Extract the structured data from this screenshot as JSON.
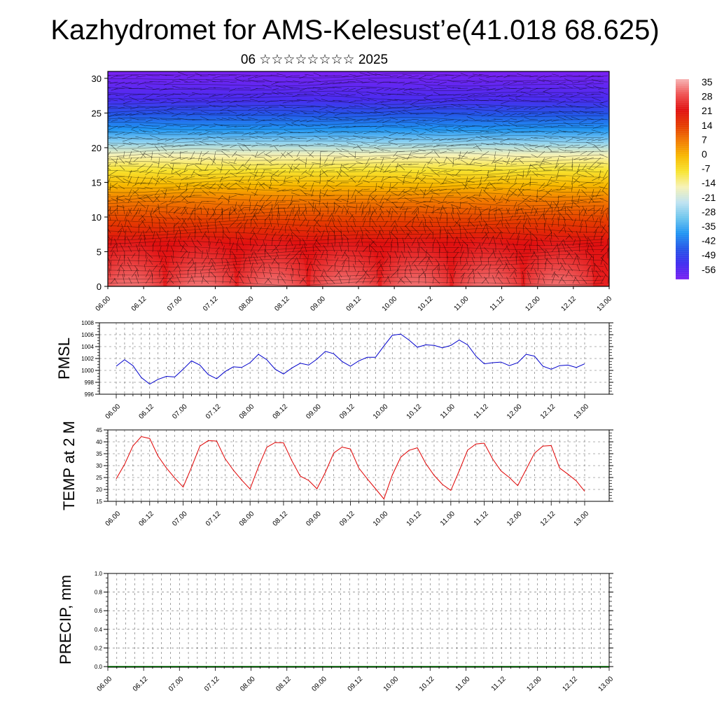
{
  "header": {
    "title": "Kazhydromet for AMS-Kelesust’e(41.018 68.625)",
    "subtitle": "06 ☆☆☆☆☆☆☆☆ 2025"
  },
  "chart_data": [
    {
      "type": "heatmap",
      "name": "temperature-wind-cross-section",
      "title": "",
      "y_ticks": [
        "0",
        "5",
        "10",
        "15",
        "20",
        "25",
        "30"
      ],
      "ylim": [
        0,
        31
      ],
      "x_ticks": [
        "06.00",
        "06.12",
        "07.00",
        "07.12",
        "08.00",
        "08.12",
        "09.00",
        "09.12",
        "10.00",
        "10.12",
        "11.00",
        "11.12",
        "12.00",
        "12.12",
        "13.00"
      ],
      "overlay": "wind barbs / streamlines",
      "colorbar": {
        "labels": [
          "35",
          "28",
          "21",
          "14",
          "7",
          "0",
          "-7",
          "-14",
          "-21",
          "-28",
          "-35",
          "-42",
          "-49",
          "-56"
        ],
        "colors": [
          "#f7b4b4",
          "#ef5050",
          "#e11010",
          "#e53a00",
          "#f27a00",
          "#f8b800",
          "#f8e430",
          "#f7f2b6",
          "#bfe3f1",
          "#6ec6ee",
          "#2196f3",
          "#2456e8",
          "#3f2af0",
          "#7a22f2"
        ]
      }
    },
    {
      "type": "line",
      "name": "pmsl",
      "ylabel": "PMSL",
      "ylim": [
        996,
        1008
      ],
      "y_ticks": [
        "996",
        "998",
        "1000",
        "1002",
        "1004",
        "1006",
        "1008"
      ],
      "x_ticks": [
        "06.00",
        "06.12",
        "07.00",
        "07.12",
        "08.00",
        "08.12",
        "09.00",
        "09.12",
        "10.00",
        "10.12",
        "11.00",
        "11.12",
        "12.00",
        "12.12",
        "13.00"
      ],
      "line_color": "#0000cc",
      "values": [
        1000.7,
        1001.8,
        1000.8,
        998.8,
        997.7,
        998.5,
        999.0,
        998.9,
        1000.2,
        1001.6,
        1000.9,
        999.3,
        998.6,
        999.8,
        1000.6,
        1000.5,
        1001.3,
        1002.7,
        1001.8,
        1000.2,
        999.4,
        1000.4,
        1001.2,
        1000.9,
        1001.9,
        1003.2,
        1002.8,
        1001.5,
        1000.7,
        1001.6,
        1002.2,
        1002.2,
        1004.1,
        1005.9,
        1006.1,
        1005.1,
        1003.9,
        1004.3,
        1004.2,
        1003.8,
        1004.2,
        1005.1,
        1004.3,
        1002.4,
        1001.1,
        1001.3,
        1001.4,
        1000.8,
        1001.3,
        1002.7,
        1002.4,
        1000.7,
        1000.2,
        1000.8,
        1000.9,
        1000.5,
        1001.1
      ]
    },
    {
      "type": "line",
      "name": "temp-2m",
      "ylabel": "TEMP at 2 M",
      "ylim": [
        15,
        45
      ],
      "y_ticks": [
        "15",
        "20",
        "25",
        "30",
        "35",
        "40",
        "45"
      ],
      "x_ticks": [
        "06.00",
        "06.12",
        "07.00",
        "07.12",
        "08.00",
        "08.12",
        "09.00",
        "09.12",
        "10.00",
        "10.12",
        "11.00",
        "11.12",
        "12.00",
        "12.12",
        "13.00"
      ],
      "line_color": "#e00000",
      "values": [
        24.5,
        30.5,
        38.3,
        42.2,
        41.4,
        34.0,
        29.0,
        24.8,
        21.0,
        29.3,
        38.2,
        40.5,
        40.3,
        33.0,
        28.1,
        23.9,
        20.2,
        29.5,
        37.7,
        39.7,
        39.6,
        32.0,
        25.6,
        23.8,
        20.3,
        27.2,
        35.3,
        37.8,
        37.0,
        29.0,
        24.5,
        20.3,
        16.0,
        26.0,
        33.5,
        36.4,
        37.5,
        30.9,
        25.9,
        22.1,
        19.6,
        27.8,
        36.5,
        39.1,
        39.4,
        32.8,
        27.8,
        25.0,
        21.6,
        28.4,
        35.2,
        38.2,
        38.4,
        29.0,
        26.4,
        23.6,
        19.2
      ]
    },
    {
      "type": "bar",
      "name": "precip",
      "ylabel": "PRECIP, mm",
      "ylim": [
        0,
        1
      ],
      "y_ticks": [
        "0.0",
        "0.2",
        "0.4",
        "0.6",
        "0.8",
        "1.0"
      ],
      "x_ticks": [
        "06.00",
        "06.12",
        "07.00",
        "07.12",
        "08.00",
        "08.12",
        "09.00",
        "09.12",
        "10.00",
        "10.12",
        "11.00",
        "11.12",
        "12.00",
        "12.12",
        "13.00"
      ],
      "values": []
    }
  ]
}
